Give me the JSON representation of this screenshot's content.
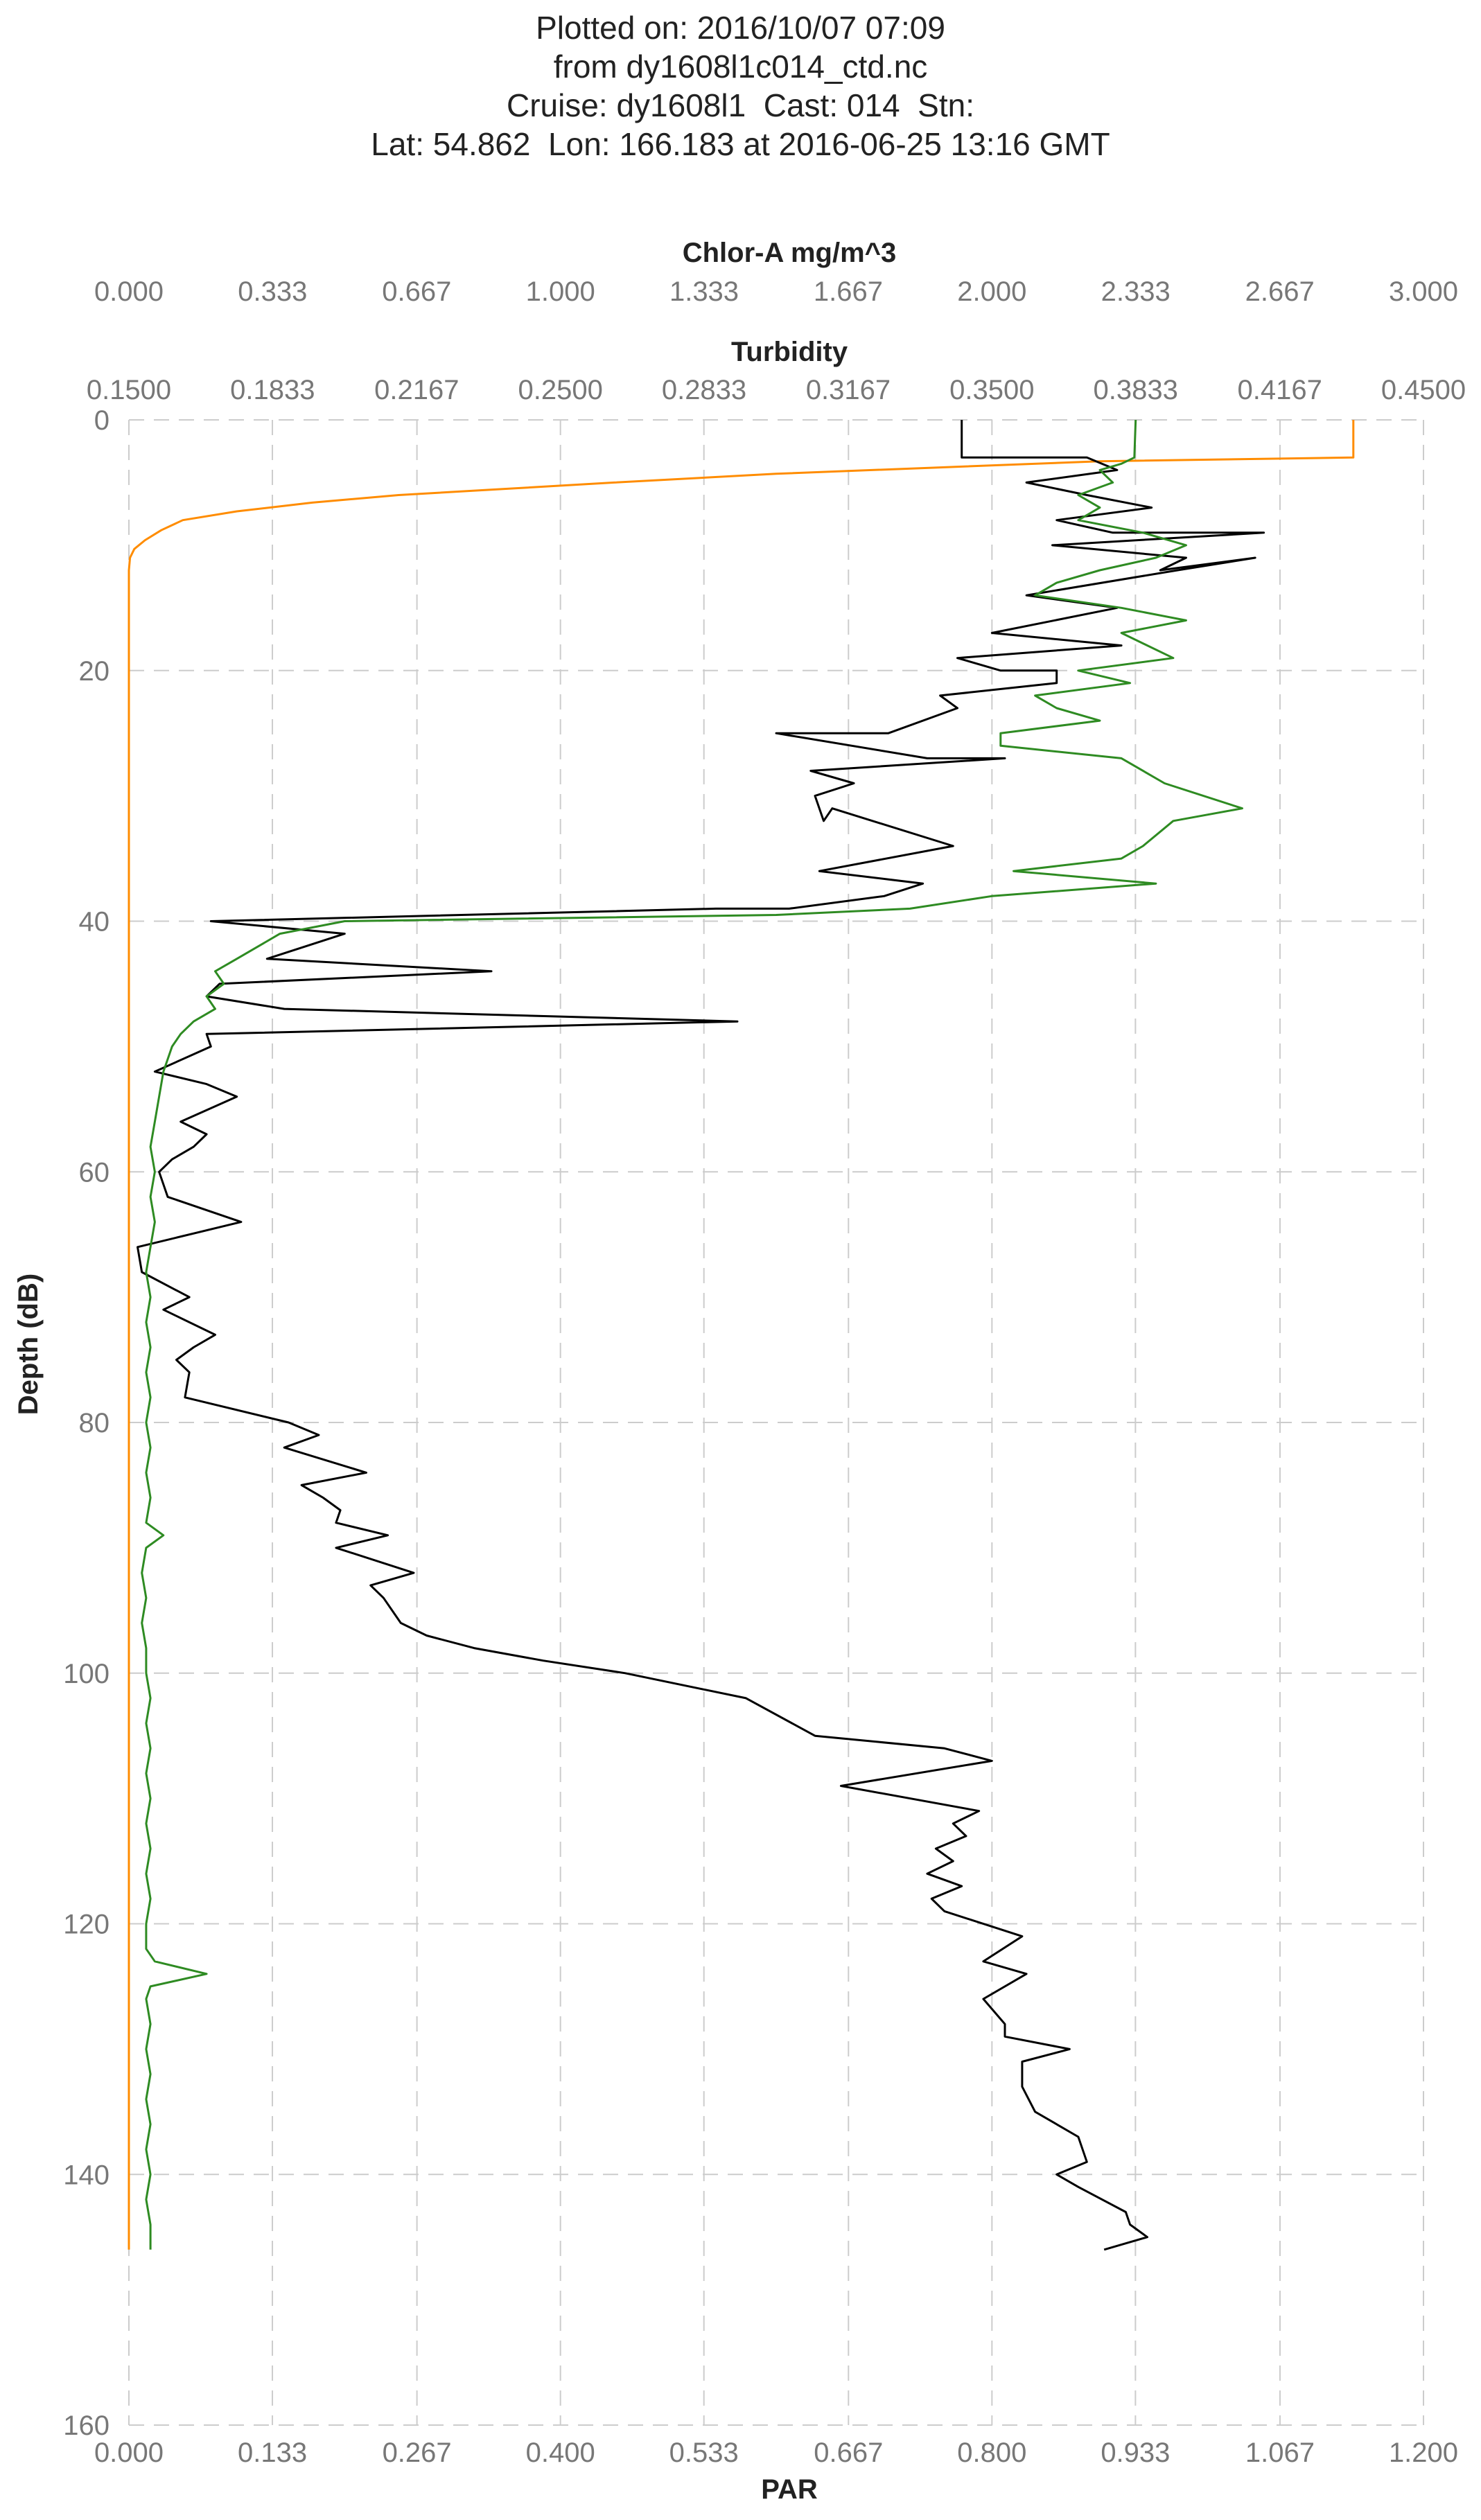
{
  "title_lines": [
    "Plotted on: 2016/10/07 07:09",
    "from dy1608l1c014_ctd.nc",
    "Cruise: dy1608l1  Cast: 014  Stn:",
    "Lat: 54.862  Lon: 166.183 at 2016-06-25 13:16 GMT"
  ],
  "chart_data": {
    "type": "line",
    "grid": true,
    "y_axis": {
      "label": "Depth (dB)",
      "range": [
        160,
        0
      ],
      "ticks": [
        0,
        20,
        40,
        60,
        80,
        100,
        120,
        140,
        160
      ],
      "tick_labels": [
        "0",
        "20",
        "40",
        "60",
        "80",
        "100",
        "120",
        "140",
        "160"
      ]
    },
    "x_axes": [
      {
        "id": "chlor",
        "position": "top-outer",
        "label": "Chlor-A mg/m^3",
        "range": [
          0,
          3
        ],
        "ticks": [
          0,
          0.333,
          0.667,
          1.0,
          1.333,
          1.667,
          2.0,
          2.333,
          2.667,
          3.0
        ],
        "tick_labels": [
          "0.000",
          "0.333",
          "0.667",
          "1.000",
          "1.333",
          "1.667",
          "2.000",
          "2.333",
          "2.667",
          "3.000"
        ]
      },
      {
        "id": "turb",
        "position": "top-inner",
        "label": "Turbidity",
        "range": [
          0.15,
          0.45
        ],
        "ticks": [
          0.15,
          0.1833,
          0.2167,
          0.25,
          0.2833,
          0.3167,
          0.35,
          0.3833,
          0.4167,
          0.45
        ],
        "tick_labels": [
          "0.1500",
          "0.1833",
          "0.2167",
          "0.2500",
          "0.2833",
          "0.3167",
          "0.3500",
          "0.3833",
          "0.4167",
          "0.4500"
        ]
      },
      {
        "id": "par",
        "position": "bottom",
        "label": "PAR",
        "range": [
          0,
          1.2
        ],
        "ticks": [
          0,
          0.133,
          0.267,
          0.4,
          0.533,
          0.667,
          0.8,
          0.933,
          1.067,
          1.2
        ],
        "tick_labels": [
          "0.000",
          "0.133",
          "0.267",
          "0.400",
          "0.533",
          "0.667",
          "0.800",
          "0.933",
          "1.067",
          "1.200"
        ]
      }
    ],
    "series": [
      {
        "axis": "par",
        "color": "#ff8c00",
        "points": [
          [
            1.135,
            0
          ],
          [
            1.135,
            3
          ],
          [
            0.9,
            3.3
          ],
          [
            0.75,
            3.8
          ],
          [
            0.6,
            4.3
          ],
          [
            0.45,
            5
          ],
          [
            0.33,
            5.6
          ],
          [
            0.25,
            6
          ],
          [
            0.17,
            6.6
          ],
          [
            0.1,
            7.3
          ],
          [
            0.05,
            8
          ],
          [
            0.03,
            8.8
          ],
          [
            0.015,
            9.6
          ],
          [
            0.005,
            10.3
          ],
          [
            0.001,
            11
          ],
          [
            0,
            12
          ],
          [
            0,
            20
          ],
          [
            0,
            40
          ],
          [
            0,
            60
          ],
          [
            0,
            80
          ],
          [
            0,
            100
          ],
          [
            0,
            120
          ],
          [
            0,
            140
          ],
          [
            0,
            146
          ]
        ]
      },
      {
        "axis": "turb",
        "color": "#000000",
        "points": [
          [
            0.343,
            0
          ],
          [
            0.343,
            3
          ],
          [
            0.372,
            3
          ],
          [
            0.379,
            4
          ],
          [
            0.358,
            5
          ],
          [
            0.372,
            6
          ],
          [
            0.387,
            7
          ],
          [
            0.365,
            8
          ],
          [
            0.378,
            9
          ],
          [
            0.413,
            9
          ],
          [
            0.364,
            10
          ],
          [
            0.395,
            11
          ],
          [
            0.389,
            12
          ],
          [
            0.411,
            11
          ],
          [
            0.393,
            12
          ],
          [
            0.358,
            14
          ],
          [
            0.379,
            15
          ],
          [
            0.35,
            17
          ],
          [
            0.38,
            18
          ],
          [
            0.342,
            19
          ],
          [
            0.352,
            20
          ],
          [
            0.365,
            20
          ],
          [
            0.365,
            21
          ],
          [
            0.338,
            22
          ],
          [
            0.342,
            23
          ],
          [
            0.326,
            25
          ],
          [
            0.3,
            25
          ],
          [
            0.335,
            27
          ],
          [
            0.353,
            27
          ],
          [
            0.308,
            28
          ],
          [
            0.318,
            29
          ],
          [
            0.309,
            30
          ],
          [
            0.311,
            32
          ],
          [
            0.313,
            31
          ],
          [
            0.341,
            34
          ],
          [
            0.31,
            36
          ],
          [
            0.334,
            37
          ],
          [
            0.325,
            38
          ],
          [
            0.303,
            39
          ],
          [
            0.286,
            39
          ],
          [
            0.169,
            40
          ],
          [
            0.2,
            41
          ],
          [
            0.182,
            43
          ],
          [
            0.234,
            44
          ],
          [
            0.171,
            45
          ],
          [
            0.168,
            46
          ],
          [
            0.186,
            47
          ],
          [
            0.291,
            48
          ],
          [
            0.168,
            49
          ],
          [
            0.169,
            50
          ],
          [
            0.156,
            52
          ],
          [
            0.168,
            53
          ],
          [
            0.175,
            54
          ],
          [
            0.162,
            56
          ],
          [
            0.168,
            57
          ],
          [
            0.165,
            58
          ],
          [
            0.16,
            59
          ],
          [
            0.157,
            60
          ],
          [
            0.159,
            62
          ],
          [
            0.176,
            64
          ],
          [
            0.152,
            66
          ],
          [
            0.153,
            68
          ],
          [
            0.164,
            70
          ],
          [
            0.158,
            71
          ],
          [
            0.17,
            73
          ],
          [
            0.165,
            74
          ],
          [
            0.161,
            75
          ],
          [
            0.164,
            76
          ],
          [
            0.163,
            78
          ],
          [
            0.187,
            80
          ],
          [
            0.194,
            81
          ],
          [
            0.186,
            82
          ],
          [
            0.205,
            84
          ],
          [
            0.19,
            85
          ],
          [
            0.195,
            86
          ],
          [
            0.199,
            87
          ],
          [
            0.198,
            88
          ],
          [
            0.21,
            89
          ],
          [
            0.198,
            90
          ],
          [
            0.216,
            92
          ],
          [
            0.206,
            93
          ],
          [
            0.209,
            94
          ],
          [
            0.213,
            96
          ],
          [
            0.219,
            97
          ],
          [
            0.23,
            98
          ],
          [
            0.246,
            99
          ],
          [
            0.265,
            100
          ],
          [
            0.293,
            102
          ],
          [
            0.309,
            105
          ],
          [
            0.339,
            106
          ],
          [
            0.35,
            107
          ],
          [
            0.315,
            109
          ],
          [
            0.347,
            111
          ],
          [
            0.341,
            112
          ],
          [
            0.344,
            113
          ],
          [
            0.337,
            114
          ],
          [
            0.341,
            115
          ],
          [
            0.335,
            116
          ],
          [
            0.343,
            117
          ],
          [
            0.336,
            118
          ],
          [
            0.339,
            119
          ],
          [
            0.357,
            121
          ],
          [
            0.348,
            123
          ],
          [
            0.358,
            124
          ],
          [
            0.348,
            126
          ],
          [
            0.353,
            128
          ],
          [
            0.353,
            129
          ],
          [
            0.368,
            130
          ],
          [
            0.357,
            131
          ],
          [
            0.357,
            133
          ],
          [
            0.36,
            135
          ],
          [
            0.37,
            137
          ],
          [
            0.372,
            139
          ],
          [
            0.365,
            140
          ],
          [
            0.37,
            141
          ],
          [
            0.381,
            143
          ],
          [
            0.382,
            144
          ],
          [
            0.386,
            145
          ],
          [
            0.376,
            146
          ]
        ]
      },
      {
        "axis": "chlor",
        "color": "#2e8b22",
        "points": [
          [
            2.333,
            0
          ],
          [
            2.33,
            3
          ],
          [
            2.3,
            3.5
          ],
          [
            2.25,
            4
          ],
          [
            2.28,
            5
          ],
          [
            2.2,
            6
          ],
          [
            2.25,
            7
          ],
          [
            2.2,
            8
          ],
          [
            2.35,
            9
          ],
          [
            2.45,
            10
          ],
          [
            2.38,
            11
          ],
          [
            2.25,
            12
          ],
          [
            2.15,
            13
          ],
          [
            2.1,
            14
          ],
          [
            2.3,
            15
          ],
          [
            2.45,
            16
          ],
          [
            2.3,
            17
          ],
          [
            2.42,
            19
          ],
          [
            2.2,
            20
          ],
          [
            2.32,
            21
          ],
          [
            2.1,
            22
          ],
          [
            2.15,
            23
          ],
          [
            2.25,
            24
          ],
          [
            2.02,
            25
          ],
          [
            2.02,
            26
          ],
          [
            2.3,
            27
          ],
          [
            2.4,
            29
          ],
          [
            2.58,
            31
          ],
          [
            2.42,
            32
          ],
          [
            2.35,
            34
          ],
          [
            2.3,
            35
          ],
          [
            2.05,
            36
          ],
          [
            2.38,
            37
          ],
          [
            2.0,
            38
          ],
          [
            1.81,
            39
          ],
          [
            1.5,
            39.5
          ],
          [
            0.5,
            40
          ],
          [
            0.35,
            41
          ],
          [
            0.25,
            43
          ],
          [
            0.2,
            44
          ],
          [
            0.22,
            45
          ],
          [
            0.18,
            46
          ],
          [
            0.2,
            47
          ],
          [
            0.15,
            48
          ],
          [
            0.12,
            49
          ],
          [
            0.1,
            50
          ],
          [
            0.08,
            52
          ],
          [
            0.07,
            54
          ],
          [
            0.06,
            56
          ],
          [
            0.05,
            58
          ],
          [
            0.06,
            60
          ],
          [
            0.05,
            62
          ],
          [
            0.06,
            64
          ],
          [
            0.05,
            66
          ],
          [
            0.04,
            68
          ],
          [
            0.05,
            70
          ],
          [
            0.04,
            72
          ],
          [
            0.05,
            74
          ],
          [
            0.04,
            76
          ],
          [
            0.05,
            78
          ],
          [
            0.04,
            80
          ],
          [
            0.05,
            82
          ],
          [
            0.04,
            84
          ],
          [
            0.05,
            86
          ],
          [
            0.04,
            88
          ],
          [
            0.08,
            89
          ],
          [
            0.04,
            90
          ],
          [
            0.03,
            92
          ],
          [
            0.04,
            94
          ],
          [
            0.03,
            96
          ],
          [
            0.04,
            98
          ],
          [
            0.04,
            100
          ],
          [
            0.05,
            102
          ],
          [
            0.04,
            104
          ],
          [
            0.05,
            106
          ],
          [
            0.04,
            108
          ],
          [
            0.05,
            110
          ],
          [
            0.04,
            112
          ],
          [
            0.05,
            114
          ],
          [
            0.04,
            116
          ],
          [
            0.05,
            118
          ],
          [
            0.04,
            120
          ],
          [
            0.04,
            122
          ],
          [
            0.06,
            123
          ],
          [
            0.18,
            124
          ],
          [
            0.05,
            125
          ],
          [
            0.04,
            126
          ],
          [
            0.05,
            128
          ],
          [
            0.04,
            130
          ],
          [
            0.05,
            132
          ],
          [
            0.04,
            134
          ],
          [
            0.05,
            136
          ],
          [
            0.04,
            138
          ],
          [
            0.05,
            140
          ],
          [
            0.04,
            142
          ],
          [
            0.05,
            144
          ],
          [
            0.05,
            146
          ]
        ]
      }
    ]
  }
}
